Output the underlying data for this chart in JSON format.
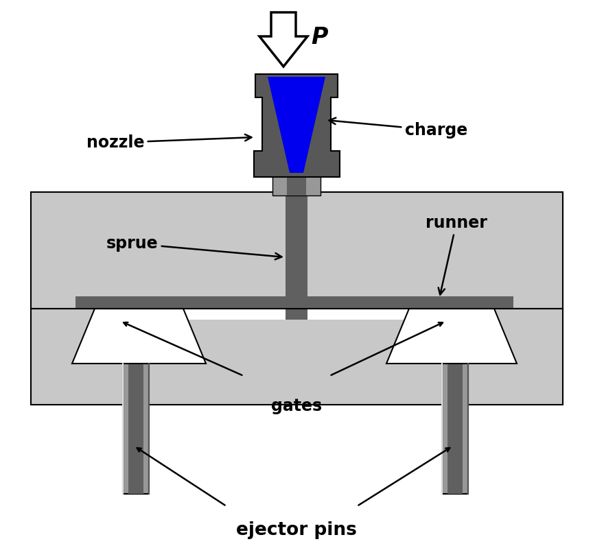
{
  "bg_color": "#ffffff",
  "light_gray": "#c8c8c8",
  "mid_gray": "#989898",
  "dark_gray": "#606060",
  "nozzle_gray": "#585858",
  "blue": "#0000ee",
  "white": "#ffffff",
  "black": "#000000",
  "labels": {
    "nozzle": "nozzle",
    "charge": "charge",
    "sprue": "sprue",
    "runner": "runner",
    "gates": "gates",
    "ejector_pins": "ejector pins",
    "P": "$\\boldsymbol{P}$"
  },
  "figsize": [
    8.64,
    7.96
  ],
  "dpi": 100
}
